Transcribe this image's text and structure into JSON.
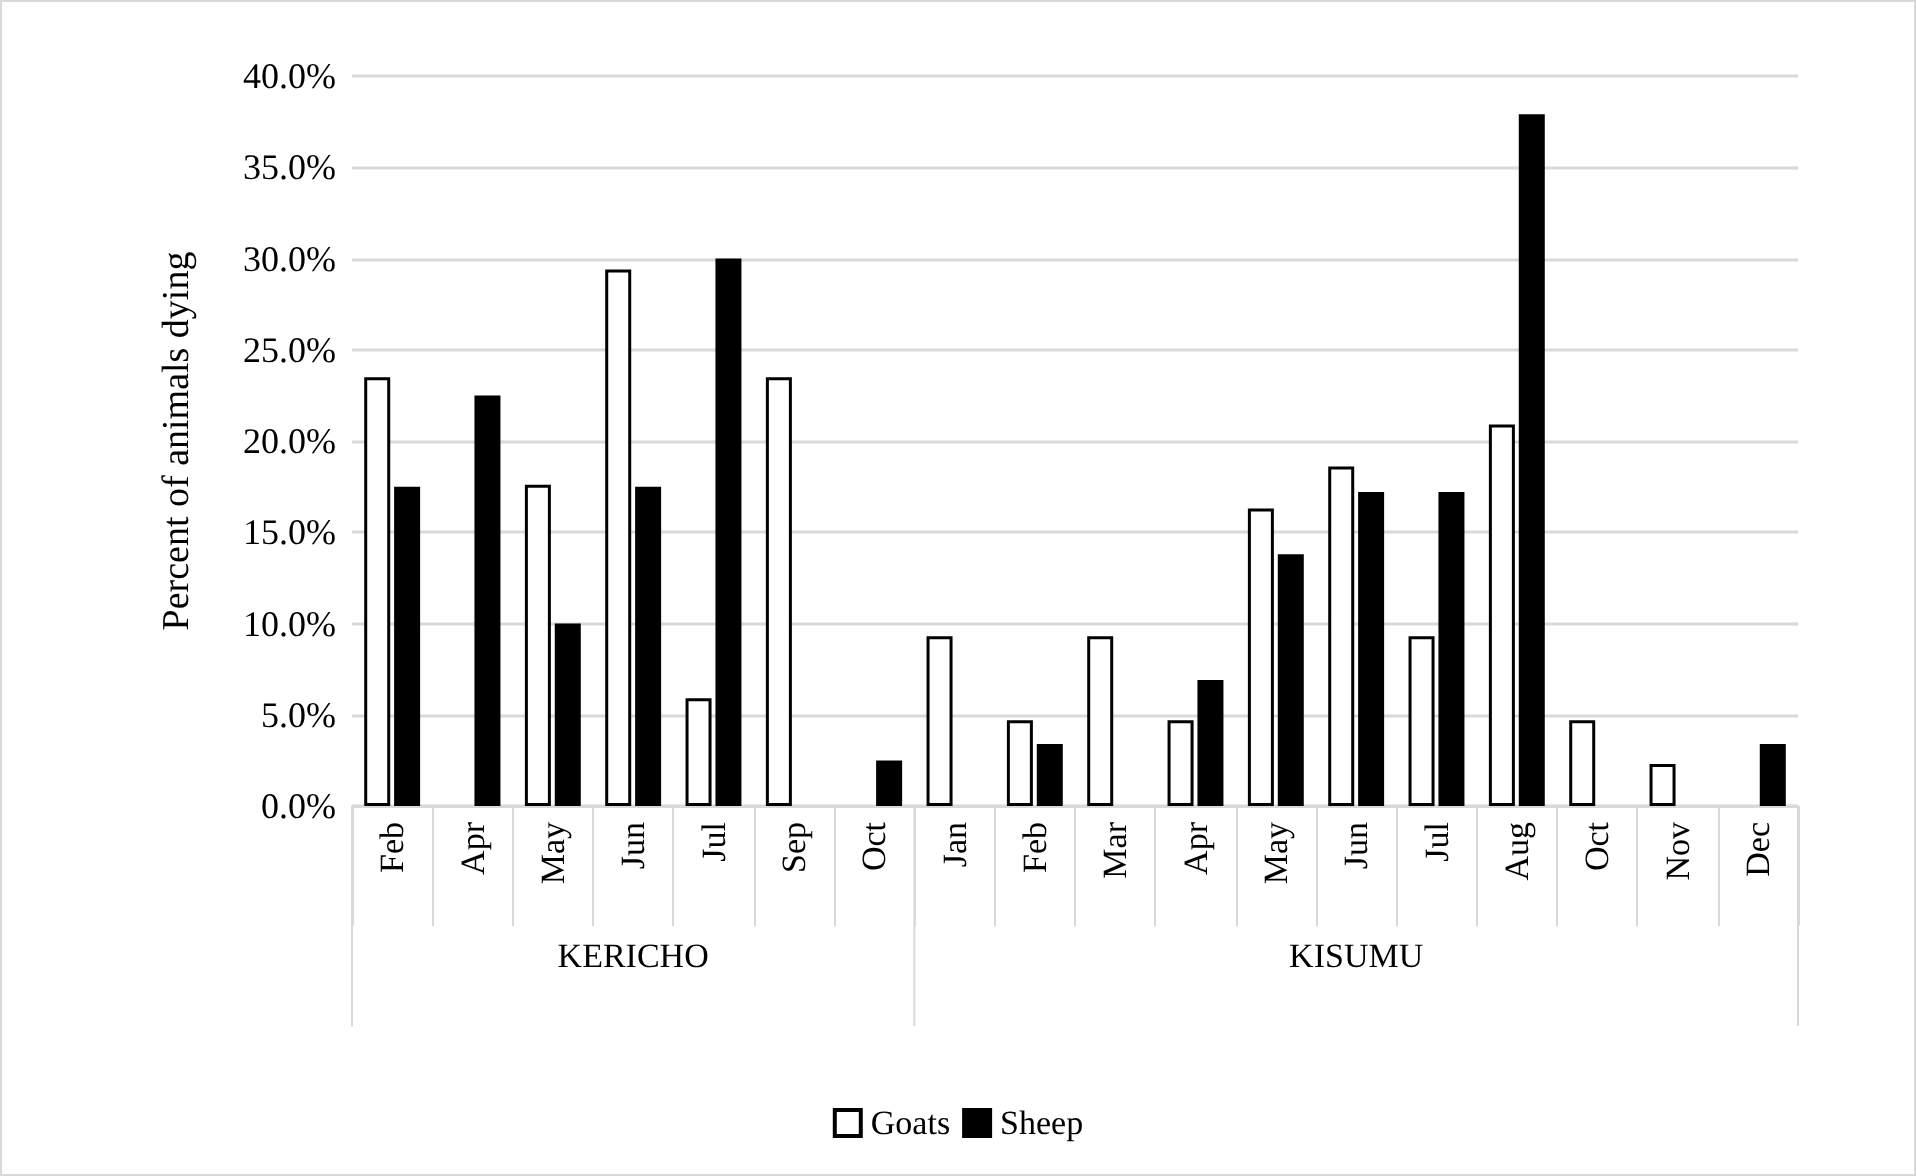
{
  "chart_data": {
    "type": "bar",
    "ylabel": "Percent of animals dying",
    "categories": [
      "Feb",
      "Apr",
      "May",
      "Jun",
      "Jul",
      "Sep",
      "Oct",
      "Jan",
      "Feb",
      "Mar",
      "Apr",
      "May",
      "Jun",
      "Jul",
      "Aug",
      "Oct",
      "Nov",
      "Dec"
    ],
    "series": [
      {
        "name": "Goats",
        "color": "#ffffff",
        "values": [
          23.5,
          0,
          17.6,
          29.4,
          5.9,
          23.5,
          0,
          9.3,
          4.7,
          9.3,
          4.7,
          16.3,
          18.6,
          9.3,
          20.9,
          4.7,
          2.3,
          0
        ]
      },
      {
        "name": "Sheep",
        "color": "#000000",
        "values": [
          17.5,
          22.5,
          10,
          17.5,
          30,
          0,
          2.5,
          0,
          3.4,
          0,
          6.9,
          13.8,
          17.2,
          17.2,
          37.9,
          0,
          0,
          3.4
        ]
      }
    ],
    "annotations": [
      "KERICHO",
      "KISUMU"
    ],
    "ylim": [
      0,
      40
    ],
    "yticks": [
      {
        "value": 0,
        "label": "0.0%"
      },
      {
        "value": 5,
        "label": "5.0%"
      },
      {
        "value": 10,
        "label": "10.0%"
      },
      {
        "value": 15,
        "label": "15.0%"
      },
      {
        "value": 20,
        "label": "20.0%"
      },
      {
        "value": 25,
        "label": "25.0%"
      },
      {
        "value": 30,
        "label": "30.0%"
      },
      {
        "value": 35,
        "label": "35.0%"
      },
      {
        "value": 40,
        "label": "40.0%"
      }
    ],
    "grid": "y",
    "legend": "bottom"
  }
}
